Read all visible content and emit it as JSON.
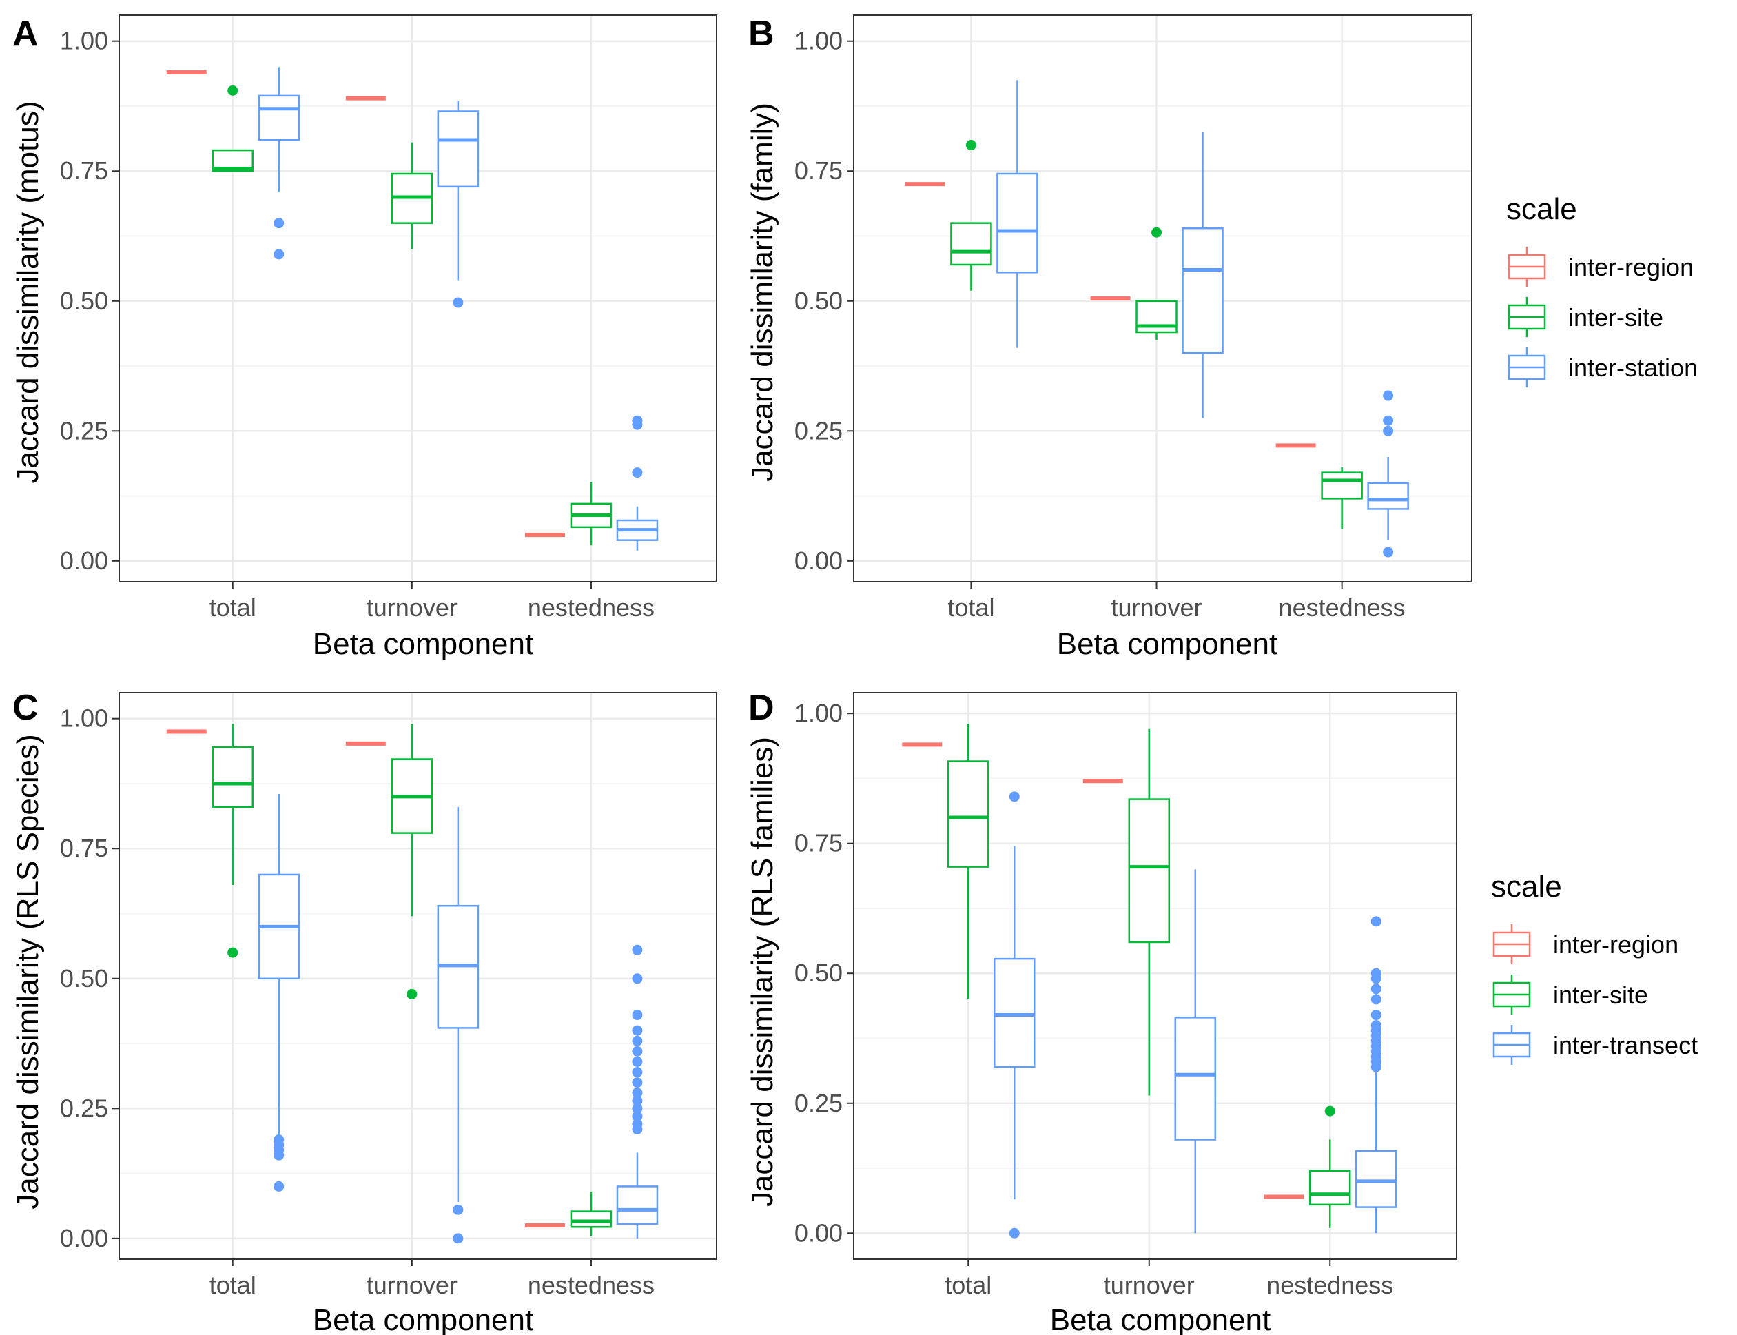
{
  "colors": {
    "inter-region": "#f8766d",
    "inter-site": "#00ba38",
    "inter-station": "#619cff",
    "inter-transect": "#619cff",
    "grid_major": "#ebebeb",
    "grid_minor": "#f5f5f5",
    "panel_border": "#333333",
    "tick_text": "#4d4d4d"
  },
  "chart_data": [
    {
      "panel": "A",
      "type": "box",
      "xlabel": "Beta component",
      "ylabel": "Jaccard dissimilarity (motus)",
      "categories": [
        "total",
        "turnover",
        "nestedness"
      ],
      "ylim": [
        -0.04,
        1.05
      ],
      "yticks": [
        "0.00",
        "0.25",
        "0.50",
        "0.75",
        "1.00"
      ],
      "grid": true,
      "legend": {
        "title": "scale",
        "position": "right",
        "entries": [
          "inter-region",
          "inter-site",
          "inter-station"
        ]
      },
      "series": [
        {
          "name": "inter-region",
          "boxes": [
            {
              "category": "total",
              "min": 0.94,
              "q1": 0.94,
              "median": 0.94,
              "q3": 0.94,
              "max": 0.94,
              "outliers": []
            },
            {
              "category": "turnover",
              "min": 0.89,
              "q1": 0.89,
              "median": 0.89,
              "q3": 0.89,
              "max": 0.89,
              "outliers": []
            },
            {
              "category": "nestedness",
              "min": 0.05,
              "q1": 0.05,
              "median": 0.05,
              "q3": 0.05,
              "max": 0.05,
              "outliers": []
            }
          ]
        },
        {
          "name": "inter-site",
          "boxes": [
            {
              "category": "total",
              "min": 0.75,
              "q1": 0.75,
              "median": 0.755,
              "q3": 0.79,
              "max": 0.79,
              "outliers": [
                0.905
              ]
            },
            {
              "category": "turnover",
              "min": 0.6,
              "q1": 0.65,
              "median": 0.7,
              "q3": 0.745,
              "max": 0.805,
              "outliers": []
            },
            {
              "category": "nestedness",
              "min": 0.03,
              "q1": 0.065,
              "median": 0.088,
              "q3": 0.11,
              "max": 0.152,
              "outliers": []
            }
          ]
        },
        {
          "name": "inter-station",
          "boxes": [
            {
              "category": "total",
              "min": 0.71,
              "q1": 0.81,
              "median": 0.87,
              "q3": 0.895,
              "max": 0.95,
              "outliers": [
                0.65,
                0.59
              ]
            },
            {
              "category": "turnover",
              "min": 0.54,
              "q1": 0.72,
              "median": 0.81,
              "q3": 0.865,
              "max": 0.885,
              "outliers": [
                0.497
              ]
            },
            {
              "category": "nestedness",
              "min": 0.02,
              "q1": 0.04,
              "median": 0.06,
              "q3": 0.078,
              "max": 0.105,
              "outliers": [
                0.17,
                0.262,
                0.27
              ]
            }
          ]
        }
      ]
    },
    {
      "panel": "B",
      "type": "box",
      "xlabel": "Beta component",
      "ylabel": "Jaccard dissimilarity (family)",
      "categories": [
        "total",
        "turnover",
        "nestedness"
      ],
      "ylim": [
        -0.04,
        1.05
      ],
      "yticks": [
        "0.00",
        "0.25",
        "0.50",
        "0.75",
        "1.00"
      ],
      "grid": true,
      "legend": {
        "title": "scale",
        "position": "right",
        "entries": [
          "inter-region",
          "inter-site",
          "inter-station"
        ]
      },
      "series": [
        {
          "name": "inter-region",
          "boxes": [
            {
              "category": "total",
              "min": 0.725,
              "q1": 0.725,
              "median": 0.725,
              "q3": 0.725,
              "max": 0.725,
              "outliers": []
            },
            {
              "category": "turnover",
              "min": 0.505,
              "q1": 0.505,
              "median": 0.505,
              "q3": 0.505,
              "max": 0.505,
              "outliers": []
            },
            {
              "category": "nestedness",
              "min": 0.222,
              "q1": 0.222,
              "median": 0.222,
              "q3": 0.222,
              "max": 0.222,
              "outliers": []
            }
          ]
        },
        {
          "name": "inter-site",
          "boxes": [
            {
              "category": "total",
              "min": 0.52,
              "q1": 0.57,
              "median": 0.595,
              "q3": 0.65,
              "max": 0.65,
              "outliers": [
                0.8
              ]
            },
            {
              "category": "turnover",
              "min": 0.425,
              "q1": 0.44,
              "median": 0.452,
              "q3": 0.5,
              "max": 0.5,
              "outliers": [
                0.632
              ]
            },
            {
              "category": "nestedness",
              "min": 0.062,
              "q1": 0.12,
              "median": 0.155,
              "q3": 0.17,
              "max": 0.18,
              "outliers": []
            }
          ]
        },
        {
          "name": "inter-station",
          "boxes": [
            {
              "category": "total",
              "min": 0.41,
              "q1": 0.555,
              "median": 0.635,
              "q3": 0.745,
              "max": 0.925,
              "outliers": []
            },
            {
              "category": "turnover",
              "min": 0.275,
              "q1": 0.4,
              "median": 0.56,
              "q3": 0.64,
              "max": 0.825,
              "outliers": []
            },
            {
              "category": "nestedness",
              "min": 0.04,
              "q1": 0.1,
              "median": 0.118,
              "q3": 0.15,
              "max": 0.2,
              "outliers": [
                0.017,
                0.25,
                0.27,
                0.318
              ]
            }
          ]
        }
      ]
    },
    {
      "panel": "C",
      "type": "box",
      "xlabel": "Beta component",
      "ylabel": "Jaccard dissimilarity (RLS Species)",
      "categories": [
        "total",
        "turnover",
        "nestedness"
      ],
      "ylim": [
        -0.04,
        1.05
      ],
      "yticks": [
        "0.00",
        "0.25",
        "0.50",
        "0.75",
        "1.00"
      ],
      "grid": true,
      "series": [
        {
          "name": "inter-region",
          "boxes": [
            {
              "category": "total",
              "min": 0.975,
              "q1": 0.975,
              "median": 0.975,
              "q3": 0.975,
              "max": 0.975,
              "outliers": []
            },
            {
              "category": "turnover",
              "min": 0.952,
              "q1": 0.952,
              "median": 0.952,
              "q3": 0.952,
              "max": 0.952,
              "outliers": []
            },
            {
              "category": "nestedness",
              "min": 0.025,
              "q1": 0.025,
              "median": 0.025,
              "q3": 0.025,
              "max": 0.025,
              "outliers": []
            }
          ]
        },
        {
          "name": "inter-site",
          "boxes": [
            {
              "category": "total",
              "min": 0.68,
              "q1": 0.83,
              "median": 0.875,
              "q3": 0.945,
              "max": 0.99,
              "outliers": [
                0.55
              ]
            },
            {
              "category": "turnover",
              "min": 0.62,
              "q1": 0.78,
              "median": 0.85,
              "q3": 0.922,
              "max": 0.99,
              "outliers": [
                0.47
              ]
            },
            {
              "category": "nestedness",
              "min": 0.005,
              "q1": 0.022,
              "median": 0.033,
              "q3": 0.052,
              "max": 0.09,
              "outliers": []
            }
          ]
        },
        {
          "name": "inter-station",
          "boxes": [
            {
              "category": "total",
              "min": 0.2,
              "q1": 0.5,
              "median": 0.6,
              "q3": 0.7,
              "max": 0.855,
              "outliers": [
                0.19,
                0.18,
                0.17,
                0.16,
                0.1
              ]
            },
            {
              "category": "turnover",
              "min": 0.07,
              "q1": 0.405,
              "median": 0.525,
              "q3": 0.64,
              "max": 0.83,
              "outliers": [
                0.055,
                0.0
              ]
            },
            {
              "category": "nestedness",
              "min": 0.0,
              "q1": 0.028,
              "median": 0.055,
              "q3": 0.1,
              "max": 0.165,
              "outliers": [
                0.21,
                0.22,
                0.235,
                0.25,
                0.265,
                0.28,
                0.3,
                0.32,
                0.34,
                0.36,
                0.38,
                0.4,
                0.43,
                0.5,
                0.555
              ]
            }
          ]
        }
      ]
    },
    {
      "panel": "D",
      "type": "box",
      "xlabel": "Beta component",
      "ylabel": "Jaccard dissimilarity (RLS families)",
      "categories": [
        "total",
        "turnover",
        "nestedness"
      ],
      "ylim": [
        -0.05,
        1.04
      ],
      "yticks": [
        "0.00",
        "0.25",
        "0.50",
        "0.75",
        "1.00"
      ],
      "grid": true,
      "legend": {
        "title": "scale",
        "position": "right",
        "entries": [
          "inter-region",
          "inter-site",
          "inter-transect"
        ]
      },
      "series": [
        {
          "name": "inter-region",
          "boxes": [
            {
              "category": "total",
              "min": 0.94,
              "q1": 0.94,
              "median": 0.94,
              "q3": 0.94,
              "max": 0.94,
              "outliers": []
            },
            {
              "category": "turnover",
              "min": 0.87,
              "q1": 0.87,
              "median": 0.87,
              "q3": 0.87,
              "max": 0.87,
              "outliers": []
            },
            {
              "category": "nestedness",
              "min": 0.07,
              "q1": 0.07,
              "median": 0.07,
              "q3": 0.07,
              "max": 0.07,
              "outliers": []
            }
          ]
        },
        {
          "name": "inter-site",
          "boxes": [
            {
              "category": "total",
              "min": 0.45,
              "q1": 0.705,
              "median": 0.8,
              "q3": 0.908,
              "max": 0.98,
              "outliers": []
            },
            {
              "category": "turnover",
              "min": 0.265,
              "q1": 0.56,
              "median": 0.705,
              "q3": 0.835,
              "max": 0.97,
              "outliers": []
            },
            {
              "category": "nestedness",
              "min": 0.01,
              "q1": 0.055,
              "median": 0.075,
              "q3": 0.12,
              "max": 0.18,
              "outliers": [
                0.235
              ]
            }
          ]
        },
        {
          "name": "inter-transect",
          "boxes": [
            {
              "category": "total",
              "min": 0.065,
              "q1": 0.32,
              "median": 0.42,
              "q3": 0.528,
              "max": 0.745,
              "outliers": [
                0.84,
                0.0
              ]
            },
            {
              "category": "turnover",
              "min": 0.0,
              "q1": 0.18,
              "median": 0.305,
              "q3": 0.415,
              "max": 0.7,
              "outliers": []
            },
            {
              "category": "nestedness",
              "min": 0.0,
              "q1": 0.05,
              "median": 0.1,
              "q3": 0.158,
              "max": 0.31,
              "outliers": [
                0.32,
                0.33,
                0.34,
                0.35,
                0.36,
                0.37,
                0.38,
                0.39,
                0.4,
                0.42,
                0.45,
                0.47,
                0.49,
                0.5,
                0.6
              ]
            }
          ]
        }
      ]
    }
  ]
}
